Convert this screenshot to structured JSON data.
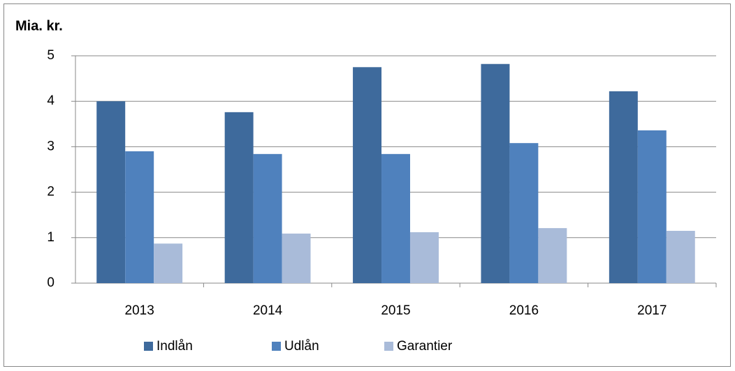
{
  "chart_data": {
    "type": "bar",
    "title": "Mia. kr.",
    "categories": [
      "2013",
      "2014",
      "2015",
      "2016",
      "2017"
    ],
    "series": [
      {
        "name": "Indlån",
        "color": "#3e6a9c",
        "values": [
          4.0,
          3.76,
          4.75,
          4.82,
          4.22
        ]
      },
      {
        "name": "Udlån",
        "color": "#4f81bd",
        "values": [
          2.9,
          2.84,
          2.84,
          3.08,
          3.36
        ]
      },
      {
        "name": "Garantier",
        "color": "#a9bbd9",
        "values": [
          0.87,
          1.09,
          1.12,
          1.21,
          1.15
        ]
      }
    ],
    "ylim": [
      0,
      5
    ],
    "yticks": [
      0,
      1,
      2,
      3,
      4,
      5
    ],
    "grid": true,
    "legend": "bottom"
  }
}
